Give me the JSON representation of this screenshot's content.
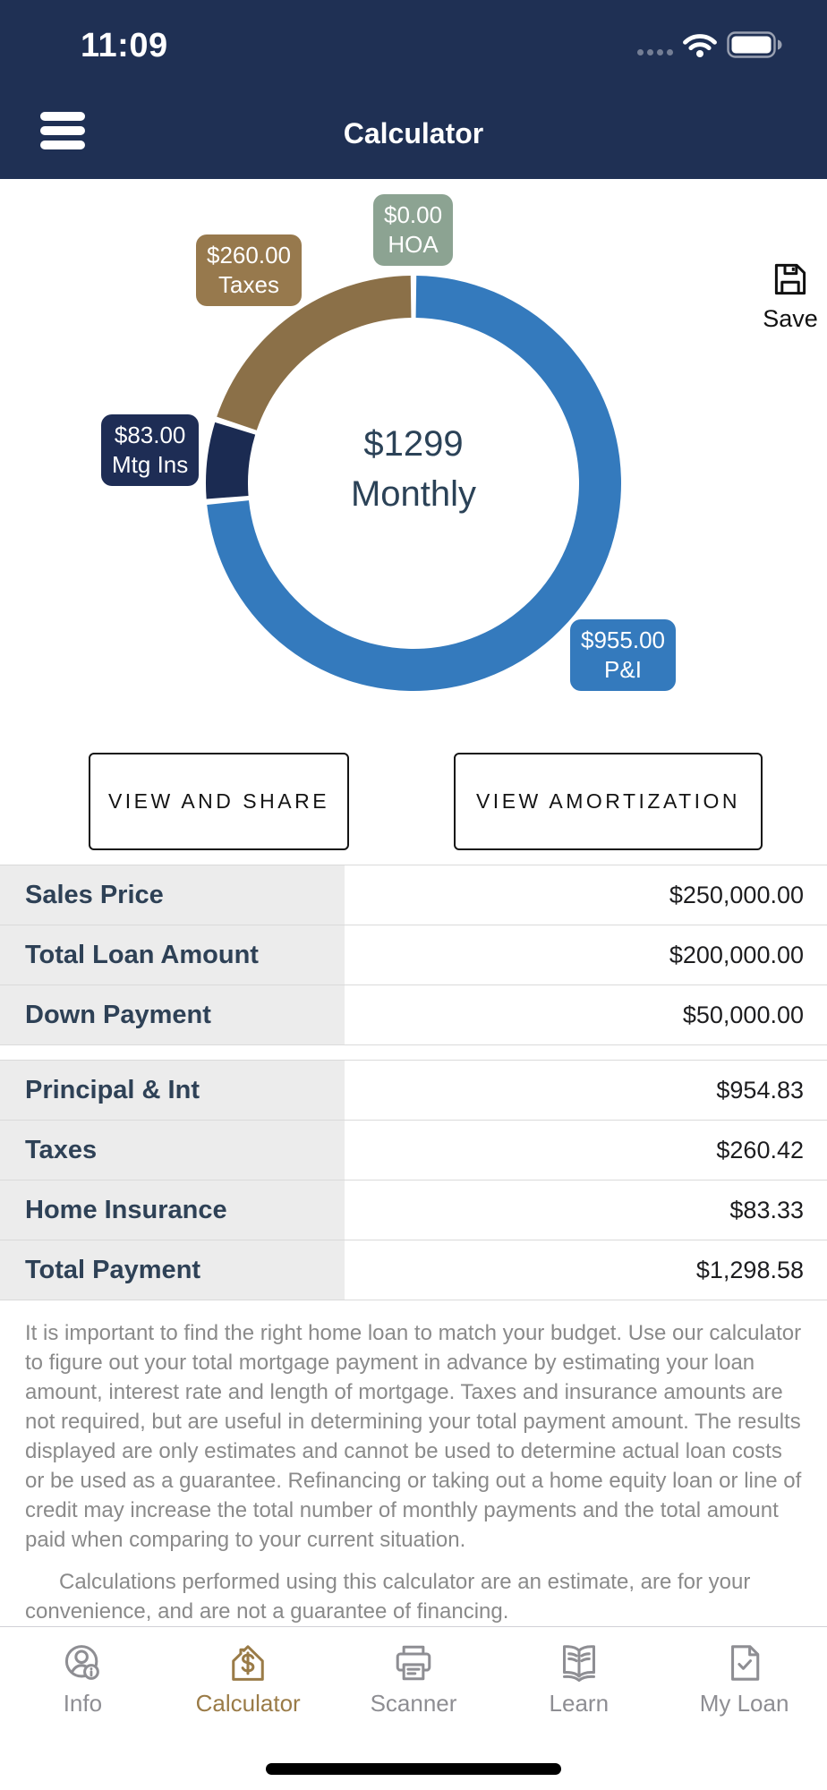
{
  "status_bar": {
    "time": "11:09",
    "cellular_icon": "cellular-dots",
    "wifi_icon": "wifi",
    "battery_icon": "battery-full"
  },
  "header": {
    "title": "Calculator",
    "menu_icon": "hamburger-menu"
  },
  "chart": {
    "center_value": "$1299",
    "center_label": "Monthly",
    "save": {
      "label": "Save",
      "icon": "floppy-disk"
    }
  },
  "chart_data": {
    "type": "pie",
    "donut": true,
    "title": "$1299 Monthly",
    "start_angle_deg": 0,
    "direction": "clockwise",
    "pad_angle_deg": 1.6,
    "segments": [
      {
        "label": "P&I",
        "display_value": "$955.00",
        "value": 955,
        "color": "#347abd"
      },
      {
        "label": "Mtg Ins",
        "display_value": "$83.00",
        "value": 83,
        "color": "#1b2b52"
      },
      {
        "label": "Taxes",
        "display_value": "$260.00",
        "value": 260,
        "color": "#8b7048"
      },
      {
        "label": "HOA",
        "display_value": "$0.00",
        "value": 0,
        "color": "#8ca392"
      }
    ],
    "callout_colors": {
      "pi": "#347abd",
      "mtg_ins": "#1e2d55",
      "taxes": "#97794d",
      "hoa": "#8ca392"
    }
  },
  "actions": {
    "view_and_share": "VIEW AND SHARE",
    "view_amortization": "VIEW AMORTIZATION"
  },
  "loan_table": {
    "rows": [
      {
        "label": "Sales Price",
        "value": "$250,000.00"
      },
      {
        "label": "Total Loan Amount",
        "value": "$200,000.00"
      },
      {
        "label": "Down Payment",
        "value": "$50,000.00"
      }
    ]
  },
  "payment_table": {
    "rows": [
      {
        "label": "Principal & Int",
        "value": "$954.83"
      },
      {
        "label": "Taxes",
        "value": "$260.42"
      },
      {
        "label": "Home Insurance",
        "value": "$83.33"
      },
      {
        "label": "Total Payment",
        "value": "$1,298.58"
      }
    ]
  },
  "disclaimer": {
    "paragraph1": "It is important to find the right home loan to match your budget. Use our calculator to figure out your total mortgage payment in advance by estimating your loan amount, interest rate and length of mortgage. Taxes and insurance amounts are not required, but are useful in determining your total payment amount. The results displayed are only estimates and cannot be used to determine actual loan costs or be used as a guarantee. Refinancing or taking out a home equity loan or line of credit may increase the total number of monthly payments and the total amount paid when comparing to your current situation.",
    "paragraph2": "Calculations performed using this calculator are an estimate, are for your convenience, and are not a guarantee of financing."
  },
  "tab_bar": {
    "active": "Calculator",
    "active_color": "#9a7b47",
    "inactive_color": "#8e8e93",
    "items": [
      {
        "label": "Info",
        "icon": "person-info-icon"
      },
      {
        "label": "Calculator",
        "icon": "house-dollar-icon"
      },
      {
        "label": "Scanner",
        "icon": "printer-icon"
      },
      {
        "label": "Learn",
        "icon": "open-book-icon"
      },
      {
        "label": "My Loan",
        "icon": "document-check-icon"
      }
    ]
  }
}
